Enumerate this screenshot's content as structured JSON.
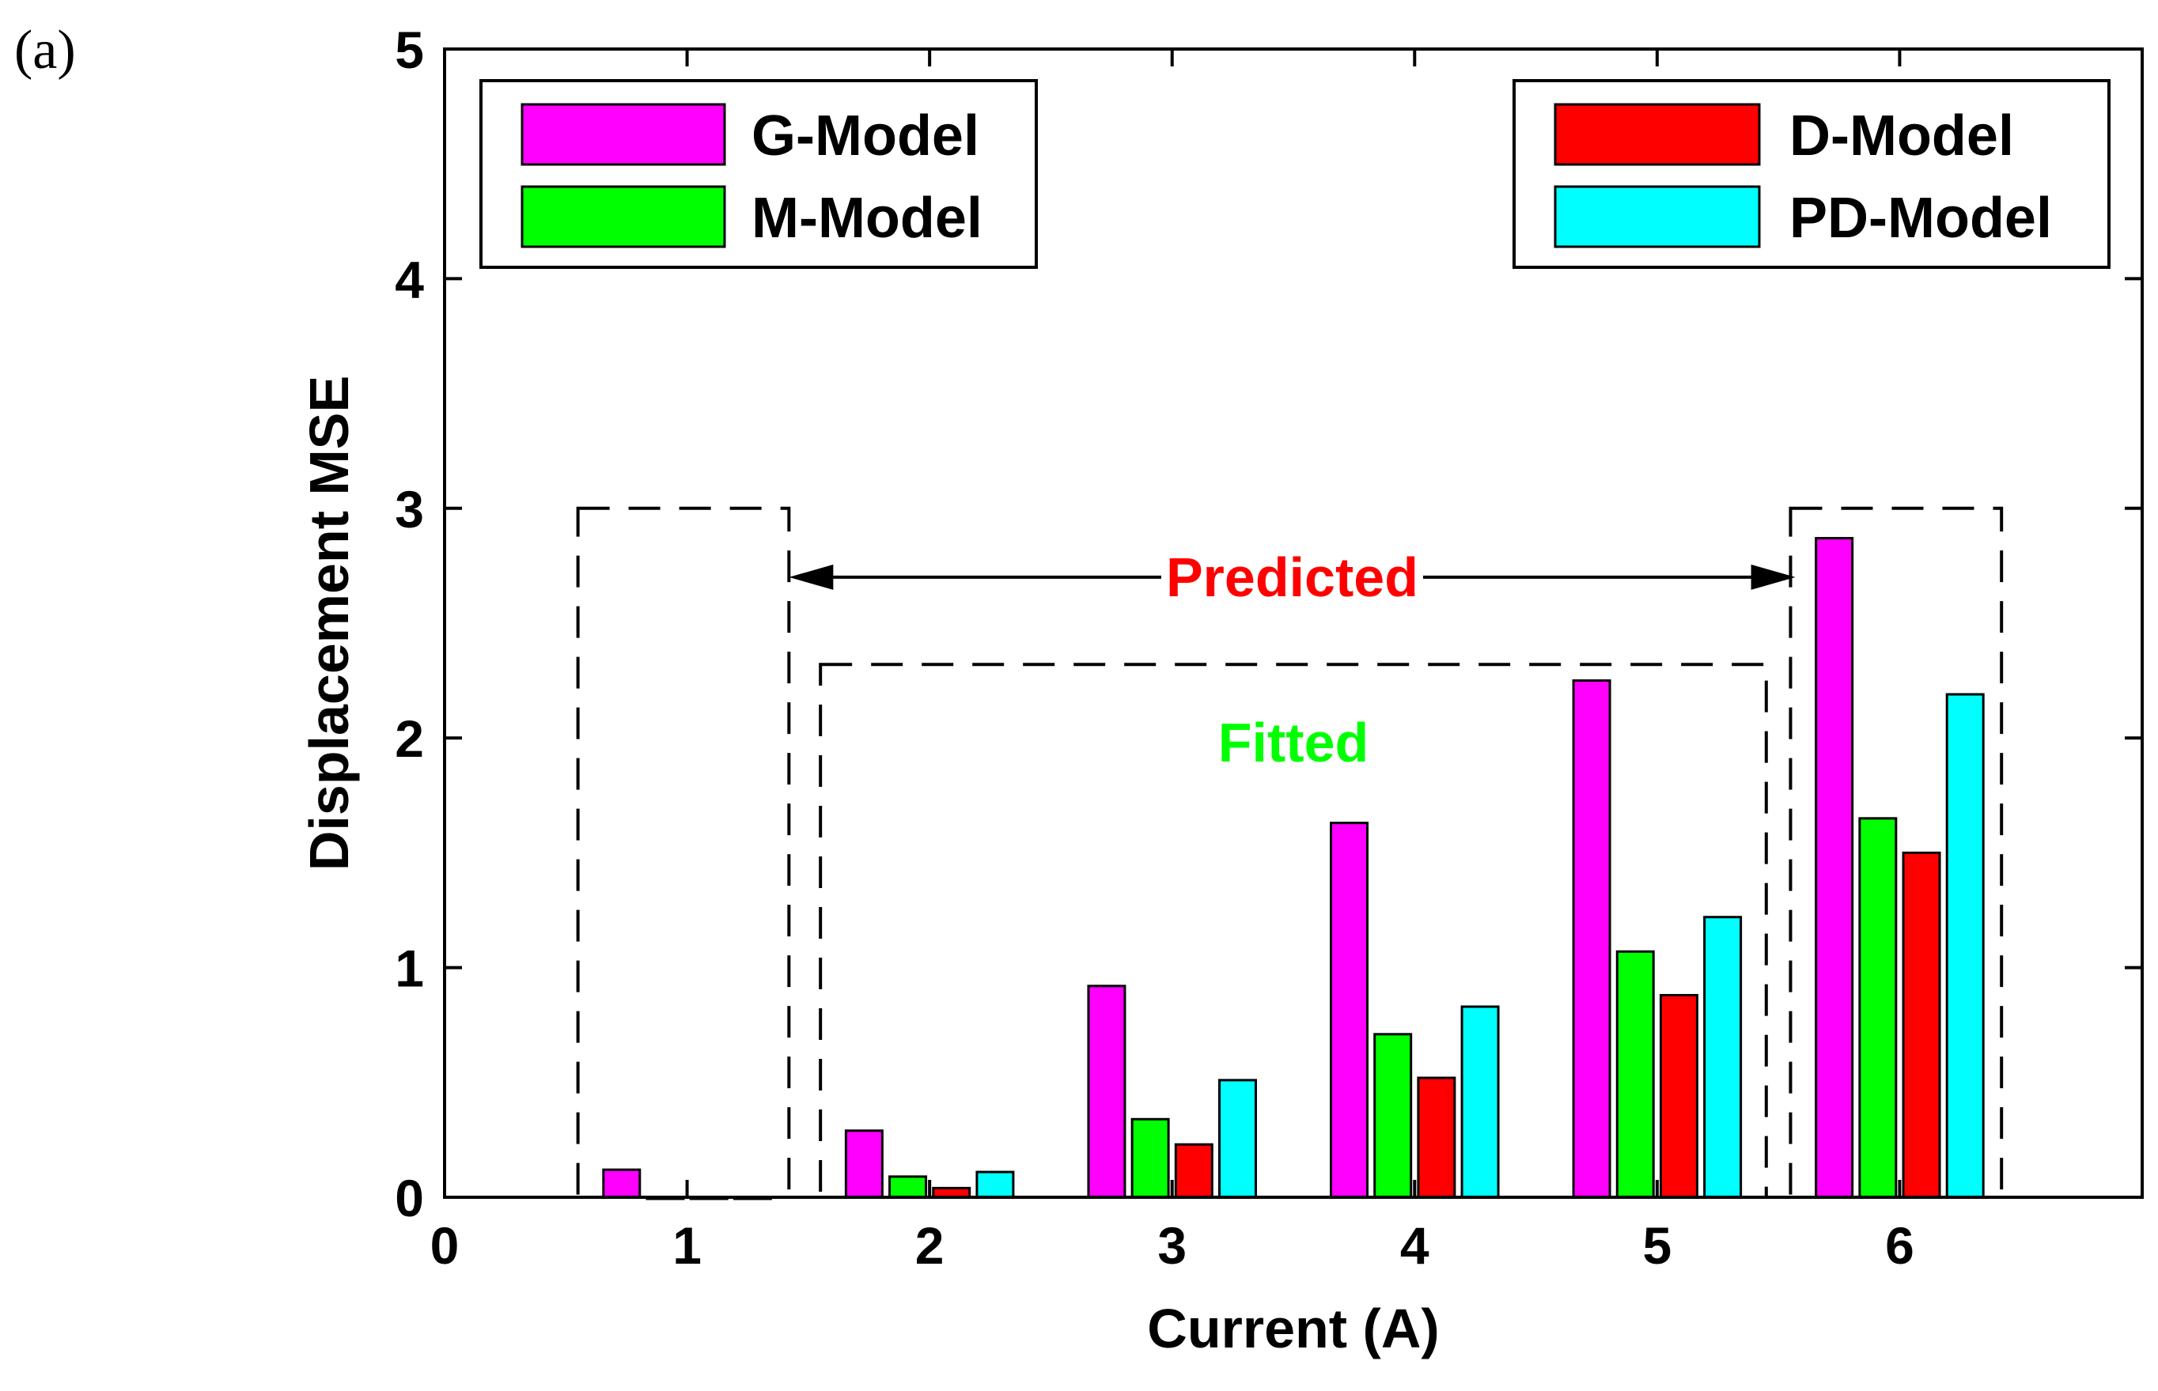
{
  "panel_label": "(a)",
  "colors": {
    "g_model": "#ff00ff",
    "m_model": "#00ff00",
    "d_model": "#ff0000",
    "pd_model": "#00ffff",
    "predicted": "#ff0000",
    "fitted": "#00ff00"
  },
  "chart_data": {
    "type": "bar",
    "title": "",
    "xlabel": "Current (A)",
    "ylabel": "Displacement MSE",
    "xlim": [
      0,
      7
    ],
    "ylim": [
      0,
      5
    ],
    "x_ticks": [
      "0",
      "1",
      "2",
      "3",
      "4",
      "5",
      "6"
    ],
    "y_ticks": [
      "0",
      "1",
      "2",
      "3",
      "4",
      "5"
    ],
    "categories": [
      "1",
      "2",
      "3",
      "4",
      "5",
      "6"
    ],
    "series": [
      {
        "name": "G-Model",
        "color": "#ff00ff",
        "values": [
          0.12,
          0.29,
          0.92,
          1.63,
          2.25,
          2.87
        ]
      },
      {
        "name": "M-Model",
        "color": "#00ff00",
        "values": [
          0.0,
          0.09,
          0.34,
          0.71,
          1.07,
          1.65
        ]
      },
      {
        "name": "D-Model",
        "color": "#ff0000",
        "values": [
          0.0,
          0.04,
          0.23,
          0.52,
          0.88,
          1.5
        ]
      },
      {
        "name": "PD-Model",
        "color": "#00ffff",
        "values": [
          0.0,
          0.11,
          0.51,
          0.83,
          1.22,
          2.19
        ]
      }
    ],
    "legends": [
      {
        "position": "top-left",
        "entries": [
          "G-Model",
          "M-Model"
        ]
      },
      {
        "position": "top-right",
        "entries": [
          "D-Model",
          "PD-Model"
        ]
      }
    ],
    "annotations": {
      "predicted": {
        "text": "Predicted",
        "color": "#ff0000",
        "arrow_from_x": 1.42,
        "arrow_to_x": 5.57,
        "y": 2.7
      },
      "fitted": {
        "text": "Fitted",
        "color": "#00ff00",
        "x": 3.5,
        "y": 1.98
      },
      "predicted_box_left": {
        "x0": 0.55,
        "x1": 1.42,
        "y0": 0,
        "y1": 3.0
      },
      "predicted_box_right": {
        "x0": 5.55,
        "x1": 6.42,
        "y0": 0,
        "y1": 3.0
      },
      "fitted_box": {
        "x0": 1.55,
        "x1": 5.45,
        "y0": 0,
        "y1": 2.32
      }
    }
  }
}
